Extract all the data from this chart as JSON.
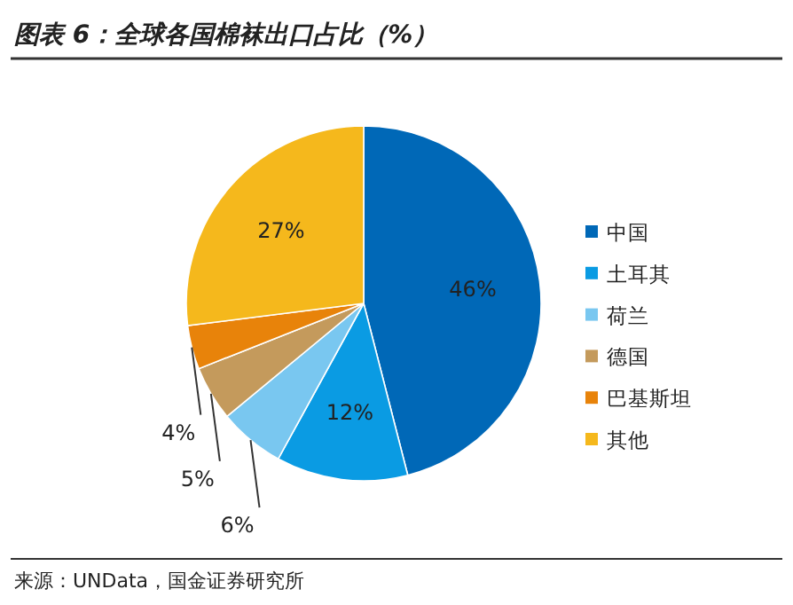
{
  "chart_data": {
    "type": "pie",
    "title": "图表 6：全球各国棉袜出口占比（%）",
    "categories": [
      "中国",
      "土耳其",
      "荷兰",
      "德国",
      "巴基斯坦",
      "其他"
    ],
    "values": [
      46,
      12,
      6,
      5,
      4,
      27
    ],
    "colors": [
      "#0068b7",
      "#0a9be3",
      "#79c7f0",
      "#c49a5c",
      "#e8830a",
      "#f5b81c"
    ],
    "value_labels": [
      "46%",
      "12%",
      "6%",
      "5%",
      "4%",
      "27%"
    ],
    "legend": "right",
    "annotations": [
      "来源：UNData，国金证券研究所"
    ]
  }
}
